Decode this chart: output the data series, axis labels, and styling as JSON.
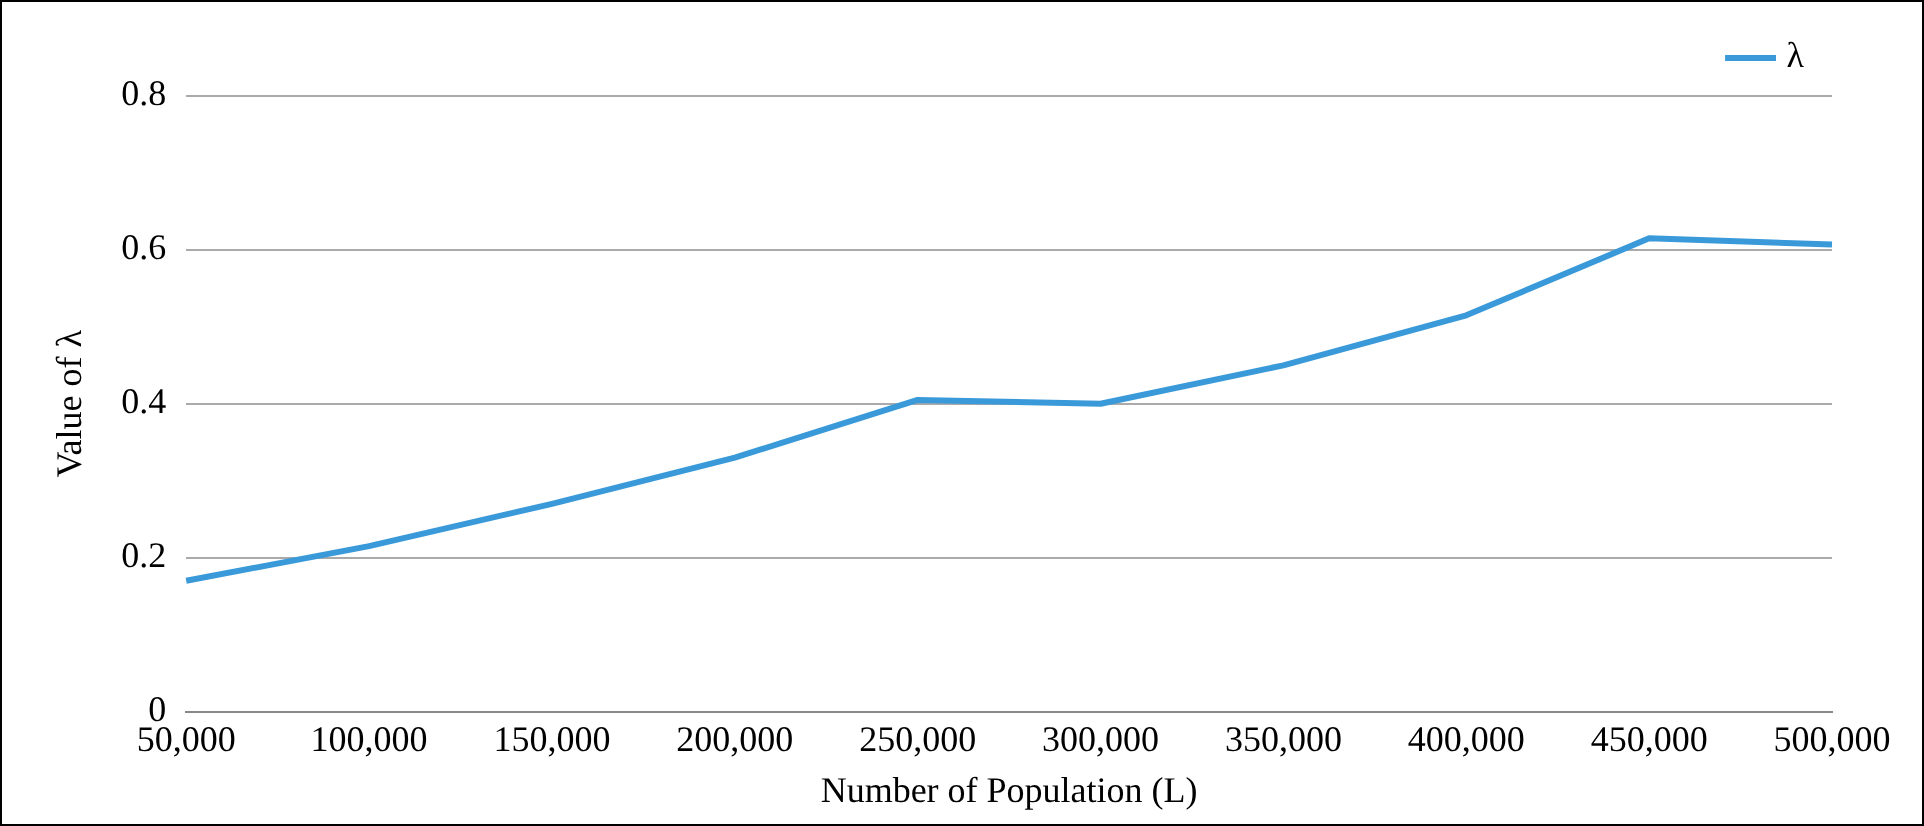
{
  "chart_data": {
    "type": "line",
    "xlabel": "Number of Population (L)",
    "ylabel": "Value of λ",
    "categories": [
      "50,000",
      "100,000",
      "150,000",
      "200,000",
      "250,000",
      "300,000",
      "350,000",
      "400,000",
      "450,000",
      "500,000"
    ],
    "series": [
      {
        "name": "λ",
        "color": "#3a9ad9",
        "values": [
          0.17,
          0.215,
          0.27,
          0.33,
          0.405,
          0.4,
          0.45,
          0.515,
          0.615,
          0.607
        ]
      }
    ],
    "ylim": [
      0,
      0.8
    ],
    "yticks": [
      0,
      0.2,
      0.4,
      0.6,
      0.8
    ],
    "grid": "y",
    "legend": "top right",
    "marker": "none",
    "line_style": "solid"
  }
}
